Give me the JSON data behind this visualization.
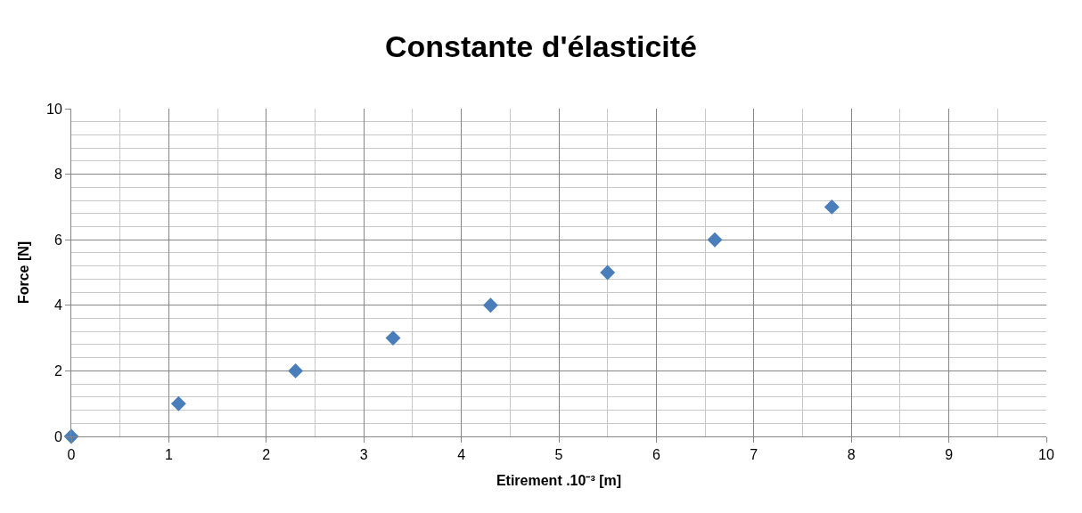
{
  "chart_data": {
    "type": "scatter",
    "title": "Constante d'élasticité",
    "xlabel": "Etirement .10⁻³ [m]",
    "ylabel": "Force [N]",
    "x": [
      0,
      1.1,
      2.3,
      3.3,
      4.3,
      5.5,
      6.6,
      7.8
    ],
    "series": [
      {
        "color": "#4a7ebb",
        "values": [
          0,
          1,
          2,
          3,
          4,
          5,
          6,
          7
        ]
      }
    ],
    "xlim": [
      0,
      10
    ],
    "xticks": [
      0,
      1,
      2,
      3,
      4,
      5,
      6,
      7,
      8,
      9,
      10
    ],
    "ylim": [
      0,
      10
    ],
    "yticks": [
      0,
      2,
      4,
      6,
      8,
      10
    ],
    "grid": true,
    "marker": "diamond"
  }
}
